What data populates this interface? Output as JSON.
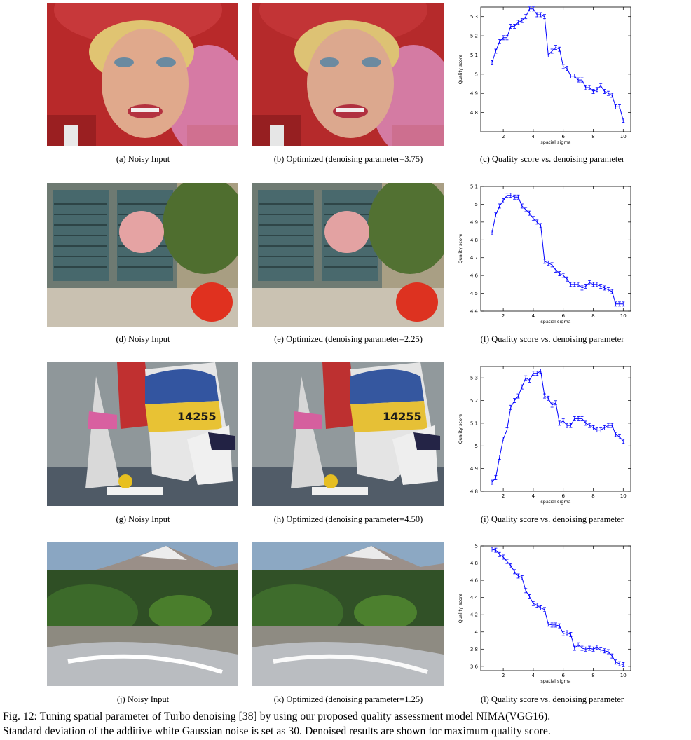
{
  "rows": [
    {
      "noisy_caption": "(a)  Noisy Input",
      "optimized_caption": "(b)  Optimized (denoising parameter=3.75)",
      "chart_caption": "(c)  Quality score vs. denoising parameter",
      "scene": "portrait"
    },
    {
      "noisy_caption": "(d)  Noisy Input",
      "optimized_caption": "(e)  Optimized (denoising parameter=2.25)",
      "chart_caption": "(f)  Quality score vs. denoising parameter",
      "scene": "window"
    },
    {
      "noisy_caption": "(g)  Noisy Input",
      "optimized_caption": "(h)  Optimized (denoising parameter=4.50)",
      "chart_caption": "(i)  Quality score vs. denoising parameter",
      "scene": "sailboats"
    },
    {
      "noisy_caption": "(j)  Noisy Input",
      "optimized_caption": "(k)  Optimized (denoising parameter=1.25)",
      "chart_caption": "(l)  Quality score vs. denoising parameter",
      "scene": "stream"
    }
  ],
  "image_text": {
    "sail_number": "14255"
  },
  "figure_caption": {
    "line1": "Fig. 12: Tuning spatial parameter of Turbo denoising [38] by using our proposed quality assessment model NIMA(VGG16).",
    "line2": "Standard deviation of the additive white Gaussian noise is set as 30. Denoised results are shown for maximum quality score."
  },
  "chart_data": [
    {
      "type": "line",
      "xlabel": "spatial sigma",
      "ylabel": "Quality score",
      "xlim": [
        0.5,
        10.5
      ],
      "ylim": [
        4.7,
        5.35
      ],
      "xticks": [
        2,
        4,
        6,
        8,
        10
      ],
      "yticks": [
        4.8,
        4.9,
        5.0,
        5.1,
        5.2,
        5.3
      ],
      "color": "#0000ff",
      "x": [
        1.25,
        1.5,
        1.75,
        2.0,
        2.25,
        2.5,
        2.75,
        3.0,
        3.25,
        3.5,
        3.75,
        4.0,
        4.25,
        4.5,
        4.75,
        5.0,
        5.25,
        5.5,
        5.75,
        6.0,
        6.25,
        6.5,
        6.75,
        7.0,
        7.25,
        7.5,
        7.75,
        8.0,
        8.25,
        8.5,
        8.75,
        9.0,
        9.25,
        9.5,
        9.75,
        10.0
      ],
      "y": [
        5.06,
        5.12,
        5.17,
        5.19,
        5.19,
        5.25,
        5.25,
        5.27,
        5.28,
        5.3,
        5.34,
        5.34,
        5.31,
        5.31,
        5.3,
        5.1,
        5.12,
        5.14,
        5.13,
        5.04,
        5.03,
        4.99,
        4.99,
        4.97,
        4.97,
        4.93,
        4.93,
        4.91,
        4.92,
        4.94,
        4.91,
        4.9,
        4.89,
        4.83,
        4.83,
        4.76
      ]
    },
    {
      "type": "line",
      "xlabel": "spatial sigma",
      "ylabel": "Quality score",
      "xlim": [
        0.5,
        10.5
      ],
      "ylim": [
        4.4,
        5.1
      ],
      "xticks": [
        2,
        4,
        6,
        8,
        10
      ],
      "yticks": [
        4.4,
        4.5,
        4.6,
        4.7,
        4.8,
        4.9,
        5.0,
        5.1
      ],
      "color": "#0000ff",
      "x": [
        1.25,
        1.5,
        1.75,
        2.0,
        2.25,
        2.5,
        2.75,
        3.0,
        3.25,
        3.5,
        3.75,
        4.0,
        4.25,
        4.5,
        4.75,
        5.0,
        5.25,
        5.5,
        5.75,
        6.0,
        6.25,
        6.5,
        6.75,
        7.0,
        7.25,
        7.5,
        7.75,
        8.0,
        8.25,
        8.5,
        8.75,
        9.0,
        9.25,
        9.5,
        9.75,
        10.0
      ],
      "y": [
        4.84,
        4.94,
        4.99,
        5.02,
        5.05,
        5.05,
        5.04,
        5.04,
        4.99,
        4.97,
        4.95,
        4.92,
        4.9,
        4.88,
        4.68,
        4.67,
        4.66,
        4.63,
        4.61,
        4.6,
        4.58,
        4.55,
        4.55,
        4.55,
        4.53,
        4.54,
        4.56,
        4.55,
        4.55,
        4.54,
        4.53,
        4.52,
        4.51,
        4.44,
        4.44,
        4.44
      ]
    },
    {
      "type": "line",
      "xlabel": "spatial sigma",
      "ylabel": "Quality score",
      "xlim": [
        0.5,
        10.5
      ],
      "ylim": [
        4.8,
        5.35
      ],
      "xticks": [
        2,
        4,
        6,
        8,
        10
      ],
      "yticks": [
        4.8,
        4.9,
        5.0,
        5.1,
        5.2,
        5.3
      ],
      "color": "#0000ff",
      "x": [
        1.25,
        1.5,
        1.75,
        2.0,
        2.25,
        2.5,
        2.75,
        3.0,
        3.25,
        3.5,
        3.75,
        4.0,
        4.25,
        4.5,
        4.75,
        5.0,
        5.25,
        5.5,
        5.75,
        6.0,
        6.25,
        6.5,
        6.75,
        7.0,
        7.25,
        7.5,
        7.75,
        8.0,
        8.25,
        8.5,
        8.75,
        9.0,
        9.25,
        9.5,
        9.75,
        10.0
      ],
      "y": [
        4.84,
        4.86,
        4.95,
        5.03,
        5.07,
        5.17,
        5.2,
        5.22,
        5.26,
        5.3,
        5.29,
        5.32,
        5.32,
        5.33,
        5.22,
        5.21,
        5.18,
        5.19,
        5.1,
        5.11,
        5.09,
        5.09,
        5.12,
        5.12,
        5.12,
        5.1,
        5.09,
        5.08,
        5.07,
        5.07,
        5.08,
        5.09,
        5.09,
        5.05,
        5.04,
        5.02
      ]
    },
    {
      "type": "line",
      "xlabel": "spatial sigma",
      "ylabel": "Quality score",
      "xlim": [
        0.5,
        10.5
      ],
      "ylim": [
        3.55,
        5.0
      ],
      "xticks": [
        2,
        4,
        6,
        8,
        10
      ],
      "yticks": [
        3.6,
        3.8,
        4.0,
        4.2,
        4.4,
        4.6,
        4.8,
        5.0
      ],
      "color": "#0000ff",
      "x": [
        1.25,
        1.5,
        1.75,
        2.0,
        2.25,
        2.5,
        2.75,
        3.0,
        3.25,
        3.5,
        3.75,
        4.0,
        4.25,
        4.5,
        4.75,
        5.0,
        5.25,
        5.5,
        5.75,
        6.0,
        6.25,
        6.5,
        6.75,
        7.0,
        7.25,
        7.5,
        7.75,
        8.0,
        8.25,
        8.5,
        8.75,
        9.0,
        9.25,
        9.5,
        9.75,
        10.0
      ],
      "y": [
        4.96,
        4.95,
        4.9,
        4.87,
        4.82,
        4.77,
        4.7,
        4.65,
        4.63,
        4.48,
        4.41,
        4.33,
        4.31,
        4.28,
        4.26,
        4.09,
        4.08,
        4.08,
        4.07,
        3.98,
        3.99,
        3.97,
        3.81,
        3.85,
        3.81,
        3.8,
        3.81,
        3.8,
        3.82,
        3.79,
        3.78,
        3.77,
        3.72,
        3.65,
        3.63,
        3.62
      ]
    }
  ]
}
